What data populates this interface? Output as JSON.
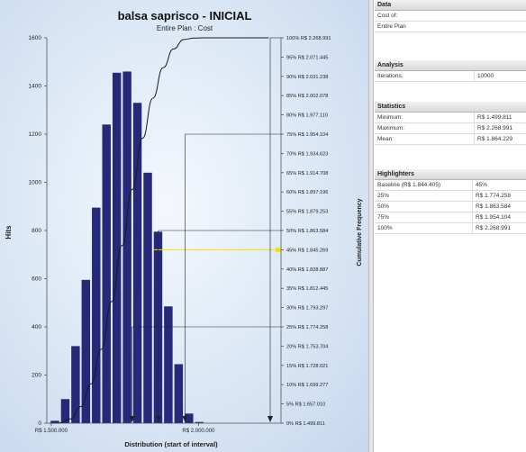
{
  "chart_data": {
    "type": "bar",
    "title": "balsa saprisco - INICIAL",
    "subtitle": "Entire Plan : Cost",
    "xlabel": "Distribution (start of interval)",
    "ylabel": "Hits",
    "y2label": "Cumulative Frequency",
    "ylim": [
      0,
      1600
    ],
    "y_ticks": [
      0,
      200,
      400,
      600,
      800,
      1000,
      1200,
      1400,
      1600
    ],
    "x_tick_labels": [
      {
        "label": "R$ 1.500.000",
        "value": 1500000
      },
      {
        "label": "R$ 2.000.000",
        "value": 2000000
      }
    ],
    "xlim": [
      1485000,
      2280000
    ],
    "bin_width": 35000,
    "bins": [
      {
        "start": 1495000,
        "hits": 10
      },
      {
        "start": 1530000,
        "hits": 100
      },
      {
        "start": 1565000,
        "hits": 320
      },
      {
        "start": 1600000,
        "hits": 595
      },
      {
        "start": 1635000,
        "hits": 895
      },
      {
        "start": 1670000,
        "hits": 1240
      },
      {
        "start": 1705000,
        "hits": 1455
      },
      {
        "start": 1740000,
        "hits": 1460
      },
      {
        "start": 1775000,
        "hits": 1330
      },
      {
        "start": 1810000,
        "hits": 1040
      },
      {
        "start": 1845000,
        "hits": 795
      },
      {
        "start": 1880000,
        "hits": 485
      },
      {
        "start": 1915000,
        "hits": 245
      },
      {
        "start": 1950000,
        "hits": 40
      },
      {
        "start": 1985000,
        "hits": 5
      }
    ],
    "cumulative_labels": [
      "100% R$ 2.268.991",
      "95% R$ 2.071.445",
      "90% R$ 2.031.238",
      "85% R$ 2.002.078",
      "80% R$ 1.977.110",
      "75% R$ 1.954.104",
      "70% R$ 1.934.623",
      "65% R$ 1.914.708",
      "60% R$ 1.897.196",
      "55% R$ 1.879.253",
      "50% R$ 1.863.584",
      "45% R$ 1.845.269",
      "40% R$ 1.828.887",
      "35% R$ 1.812.445",
      "30% R$ 1.793.297",
      "25% R$ 1.774.258",
      "20% R$ 1.753.704",
      "15% R$ 1.728.021",
      "10% R$ 1.699.277",
      "5% R$ 1.657.010",
      "0% R$ 1.499.811"
    ],
    "highlighted_label_index": 11,
    "highlighters": [
      {
        "pct": 25,
        "value": 1774258
      },
      {
        "pct": 50,
        "value": 1863584
      },
      {
        "pct": 75,
        "value": 1954104
      },
      {
        "pct": 100,
        "value": 2268991
      }
    ],
    "baseline": {
      "pct": 45,
      "value": 1845269
    },
    "colors": {
      "bar": "#26297a",
      "curve": "#1a1a1a",
      "baseline": "#f2e300",
      "highlighter": "#222222"
    }
  },
  "panel": {
    "data": {
      "header": "Data",
      "row1": "Cost of:",
      "row2": "Entire Plan"
    },
    "analysis": {
      "header": "Analysis",
      "label": "Iterations:",
      "value": "10000"
    },
    "statistics": {
      "header": "Statistics",
      "rows": [
        {
          "label": "Minimum:",
          "value": "R$ 1.499.811"
        },
        {
          "label": "Maximum:",
          "value": "R$ 2.268.991"
        },
        {
          "label": "Mean:",
          "value": "R$ 1.864.229"
        }
      ]
    },
    "highlighters": {
      "header": "Highlighters",
      "rows": [
        {
          "label": "Baseline (R$ 1.844.405)",
          "value": "45%"
        },
        {
          "label": "25%",
          "value": "R$ 1.774.258"
        },
        {
          "label": "50%",
          "value": "R$ 1.863.584"
        },
        {
          "label": "75%",
          "value": "R$ 1.954.104"
        },
        {
          "label": "100%",
          "value": "R$ 2.268.991"
        }
      ]
    }
  }
}
